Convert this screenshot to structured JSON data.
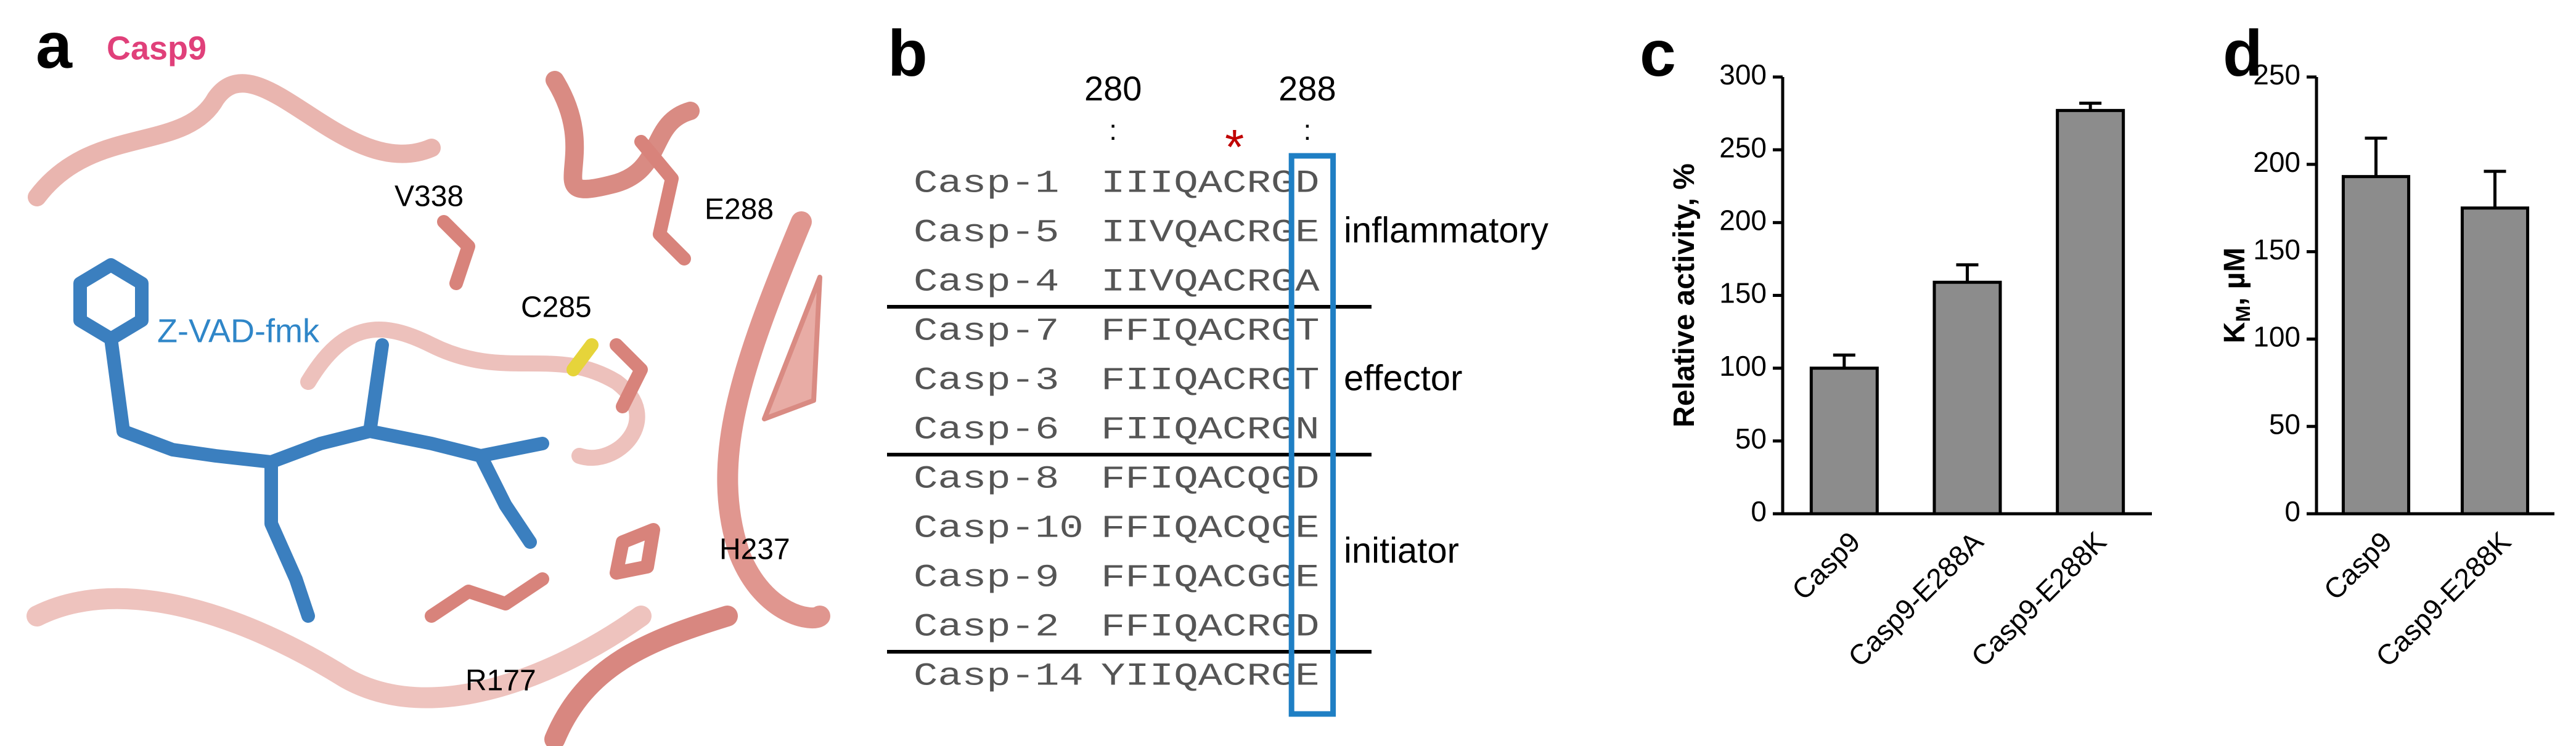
{
  "panel_a": {
    "label": "a",
    "title": "Casp9",
    "ligand": "Z-VAD-fmk",
    "residues": [
      "V338",
      "E288",
      "C285",
      "H237",
      "R177"
    ]
  },
  "panel_b": {
    "label": "b",
    "positions": [
      280,
      288
    ],
    "position_marks": [
      ":",
      ":"
    ],
    "asterisk": "*",
    "rows": [
      {
        "name": "Casp-1",
        "sequence": "IIIQACRGD"
      },
      {
        "name": "Casp-5",
        "sequence": "IIVQACRGE"
      },
      {
        "name": "Casp-4",
        "sequence": "IIVQACRGA"
      },
      {
        "name": "Casp-7",
        "sequence": "FFIQACRGT"
      },
      {
        "name": "Casp-3",
        "sequence": "FIIQACRGT"
      },
      {
        "name": "Casp-6",
        "sequence": "FIIQACRGN"
      },
      {
        "name": "Casp-8",
        "sequence": "FFIQACQGD"
      },
      {
        "name": "Casp-10",
        "sequence": "FFIQACQGE"
      },
      {
        "name": "Casp-9",
        "sequence": "FFIQACGGE"
      },
      {
        "name": "Casp-2",
        "sequence": "FFIQACRGD"
      },
      {
        "name": "Casp-14",
        "sequence": "YIIQACRGE"
      }
    ],
    "groups": [
      "inflammatory",
      "effector",
      "initiator"
    ]
  },
  "chart_data": [
    {
      "panel_label": "c",
      "type": "bar",
      "ylabel": "Relative activity, %",
      "categories": [
        "Casp9",
        "Casp9-E288A",
        "Casp9-E288K"
      ],
      "values": [
        100,
        159,
        277
      ],
      "errors": [
        9,
        12,
        5
      ],
      "color": "#8c8c8c",
      "ylim": [
        0,
        300
      ],
      "yticks": [
        0,
        50,
        100,
        150,
        200,
        250,
        300
      ]
    },
    {
      "panel_label": "d",
      "type": "bar",
      "ylabel": "K",
      "ylabel_sub": "M",
      "ylabel_unit": ", µM",
      "categories": [
        "Casp9",
        "Casp9-E288K"
      ],
      "values": [
        193,
        175
      ],
      "errors": [
        22,
        21
      ],
      "color": "#8c8c8c",
      "ylim": [
        0,
        250
      ],
      "yticks": [
        0,
        50,
        100,
        150,
        200,
        250
      ]
    }
  ]
}
